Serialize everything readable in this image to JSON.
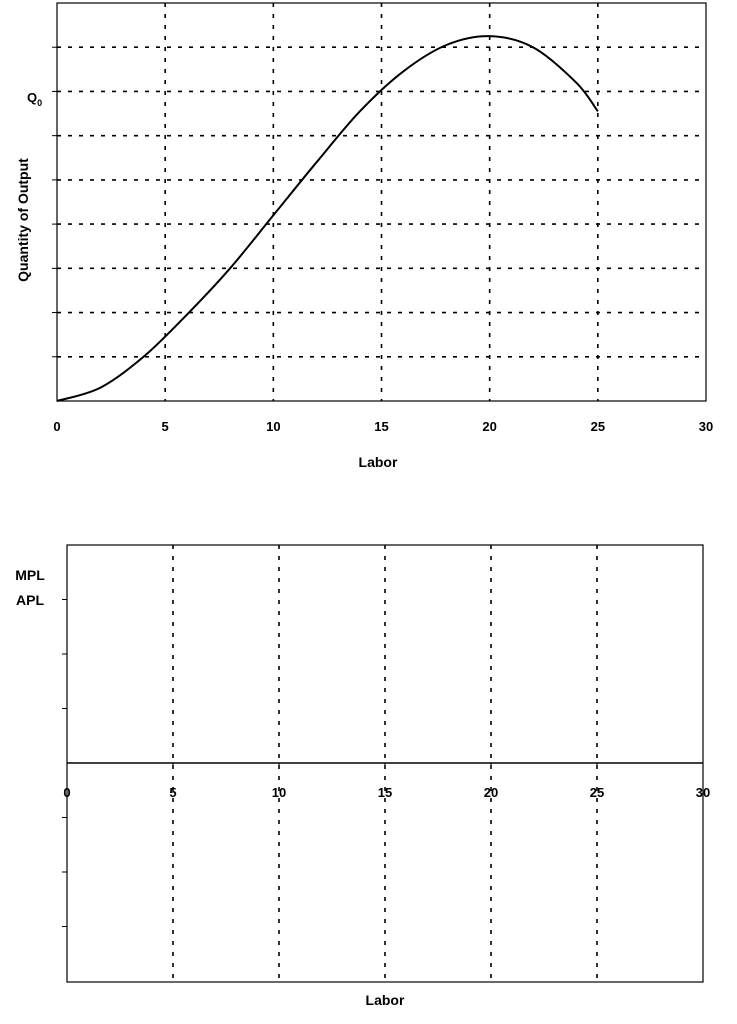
{
  "chart_data": [
    {
      "type": "line",
      "title": "",
      "xlabel": "Labor",
      "ylabel": "Quantity of Output",
      "y_annotation": "Q0",
      "xlim": [
        0,
        30
      ],
      "ylim": [
        0,
        9
      ],
      "x_ticks": [
        "0",
        "5",
        "10",
        "15",
        "20",
        "25",
        "30"
      ],
      "y_gridlines": 9,
      "grid": true,
      "series": [
        {
          "x": [
            0,
            2,
            4,
            6,
            8,
            10,
            12,
            14,
            16,
            18,
            20,
            22,
            24,
            25
          ],
          "y": [
            0,
            0.3,
            1.0,
            1.95,
            3.0,
            4.2,
            5.4,
            6.55,
            7.45,
            8.05,
            8.25,
            8.0,
            7.2,
            6.55
          ]
        }
      ]
    },
    {
      "type": "line",
      "title": "",
      "xlabel": "Labor",
      "ylabel_lines": [
        "MPL",
        "APL"
      ],
      "xlim": [
        0,
        30
      ],
      "x_ticks": [
        "0",
        "5",
        "10",
        "15",
        "20",
        "25",
        "30"
      ],
      "grid": true,
      "series": []
    }
  ]
}
